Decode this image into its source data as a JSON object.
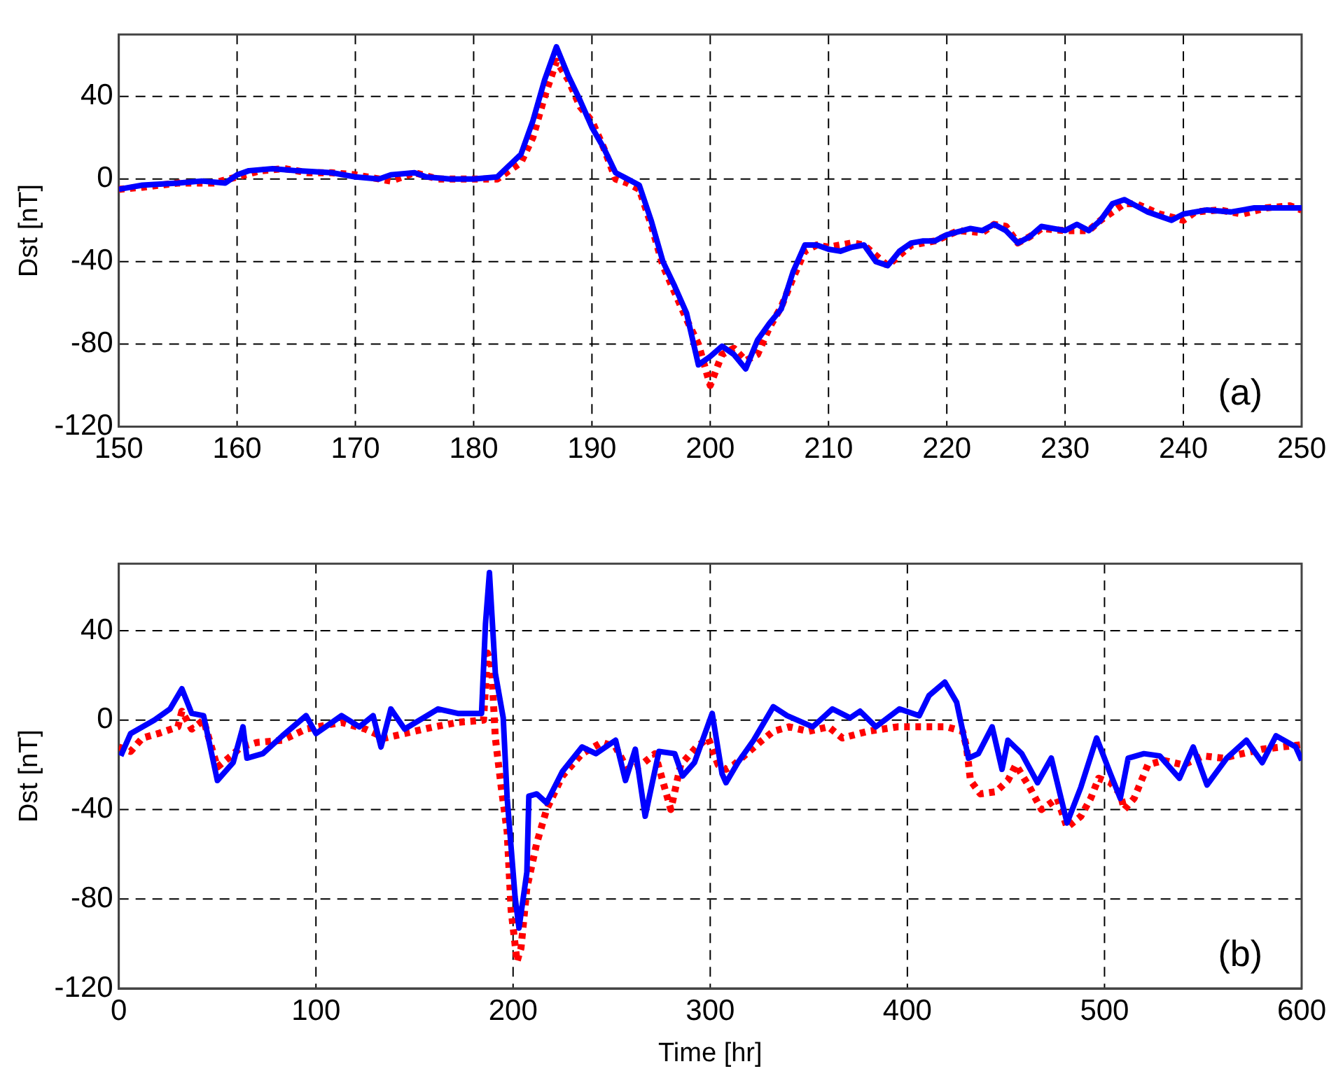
{
  "chart_data": [
    {
      "type": "line",
      "ylabel": "Dst [nT]",
      "xlim": [
        150,
        250
      ],
      "xticks": [
        150,
        160,
        170,
        180,
        190,
        200,
        210,
        220,
        230,
        240,
        250
      ],
      "ylim": [
        -120,
        70
      ],
      "yticks": [
        -120,
        -80,
        -40,
        0,
        40
      ],
      "grid": true,
      "marker": "none",
      "annotations": [
        "(a)"
      ],
      "series": [
        {
          "color": "#0000ff",
          "line_style": "solid",
          "x": [
            150,
            152,
            155,
            157,
            159,
            160,
            161,
            163,
            165,
            168,
            170,
            172,
            173,
            175,
            176,
            178,
            180,
            182,
            184,
            185,
            186,
            187,
            188,
            189,
            190,
            191,
            192,
            193,
            194,
            195,
            196,
            197,
            198,
            199,
            200,
            201,
            202,
            203,
            204,
            205,
            206,
            207,
            208,
            209,
            210,
            211,
            212,
            213,
            214,
            215,
            216,
            217,
            218,
            219,
            220,
            222,
            223,
            224,
            225,
            226,
            227,
            228,
            230,
            231,
            232,
            233,
            234,
            235,
            236,
            237,
            239,
            240,
            242,
            244,
            246,
            248,
            250
          ],
          "values": [
            -5,
            -3,
            -2,
            -1,
            -2,
            2,
            4,
            5,
            4,
            3,
            1,
            0,
            2,
            3,
            1,
            0,
            0,
            1,
            12,
            28,
            48,
            64,
            50,
            38,
            25,
            15,
            3,
            0,
            -3,
            -20,
            -40,
            -52,
            -65,
            -90,
            -86,
            -81,
            -85,
            -92,
            -78,
            -70,
            -63,
            -45,
            -32,
            -32,
            -34,
            -35,
            -33,
            -32,
            -40,
            -42,
            -35,
            -31,
            -30,
            -30,
            -27,
            -24,
            -25,
            -22,
            -25,
            -31,
            -28,
            -23,
            -25,
            -22,
            -25,
            -20,
            -12,
            -10,
            -13,
            -16,
            -20,
            -17,
            -15,
            -16,
            -14,
            -14,
            -14
          ]
        },
        {
          "color": "#ff0000",
          "line_style": "dotted",
          "x": [
            150,
            152,
            155,
            158,
            160,
            162,
            164,
            166,
            168,
            170,
            172,
            173,
            175,
            177,
            180,
            182,
            184,
            185,
            186,
            187,
            188,
            189,
            190,
            191,
            192,
            193,
            194,
            195,
            196,
            197,
            198,
            199,
            200,
            201,
            202,
            203,
            204,
            205,
            206,
            207,
            208,
            209,
            210,
            212,
            213,
            215,
            216,
            217,
            219,
            221,
            223,
            224,
            225,
            226,
            227,
            228,
            230,
            232,
            233,
            235,
            236,
            238,
            240,
            241,
            243,
            245,
            247,
            249,
            250
          ],
          "values": [
            -5,
            -4,
            -2,
            -2,
            1,
            4,
            5,
            3,
            3,
            2,
            0,
            -1,
            3,
            0,
            0,
            0,
            8,
            20,
            40,
            57,
            48,
            35,
            28,
            15,
            0,
            -2,
            -5,
            -22,
            -42,
            -55,
            -68,
            -80,
            -100,
            -85,
            -82,
            -88,
            -85,
            -72,
            -62,
            -48,
            -35,
            -32,
            -33,
            -31,
            -32,
            -42,
            -37,
            -32,
            -30,
            -25,
            -26,
            -22,
            -23,
            -31,
            -28,
            -24,
            -25,
            -25,
            -20,
            -12,
            -12,
            -17,
            -20,
            -16,
            -15,
            -17,
            -14,
            -13,
            -15
          ]
        }
      ]
    },
    {
      "type": "line",
      "xlabel": "Time [hr]",
      "ylabel": "Dst [nT]",
      "xlim": [
        0,
        600
      ],
      "xticks": [
        0,
        100,
        200,
        300,
        400,
        500,
        600
      ],
      "ylim": [
        -120,
        70
      ],
      "yticks": [
        -120,
        -80,
        -40,
        0,
        40
      ],
      "grid": true,
      "marker": "none",
      "annotations": [
        "(b)"
      ],
      "series": [
        {
          "color": "#0000ff",
          "line_style": "solid",
          "x": [
            1,
            6,
            18,
            26,
            32,
            37,
            43,
            50,
            58,
            63,
            65,
            73,
            83,
            95,
            100,
            113,
            122,
            129,
            133,
            138,
            145,
            162,
            172,
            184,
            186,
            188,
            191,
            195,
            197,
            201,
            203,
            207,
            208,
            212,
            217,
            225,
            235,
            242,
            252,
            257,
            262,
            267,
            274,
            282,
            286,
            292,
            301,
            306,
            308,
            314,
            322,
            332,
            339,
            352,
            362,
            371,
            376,
            384,
            396,
            406,
            411,
            419,
            425,
            431,
            436,
            443,
            448,
            451,
            458,
            466,
            473,
            481,
            488,
            496,
            503,
            508,
            512,
            520,
            528,
            538,
            545,
            552,
            562,
            572,
            580,
            587,
            597,
            600
          ],
          "values": [
            -16,
            -6,
            0,
            5,
            14,
            3,
            2,
            -27,
            -19,
            -3,
            -17,
            -15,
            -7,
            2,
            -6,
            2,
            -3,
            2,
            -12,
            5,
            -4,
            5,
            3,
            3,
            43,
            66,
            21,
            1,
            -35,
            -79,
            -93,
            -68,
            -34,
            -33,
            -37,
            -23,
            -12,
            -15,
            -9,
            -27,
            -13,
            -43,
            -14,
            -15,
            -25,
            -19,
            3,
            -24,
            -28,
            -19,
            -9,
            6,
            2,
            -3,
            5,
            1,
            4,
            -3,
            5,
            2,
            11,
            17,
            8,
            -17,
            -15,
            -3,
            -22,
            -9,
            -15,
            -28,
            -17,
            -46,
            -30,
            -8,
            -24,
            -35,
            -17,
            -15,
            -16,
            -26,
            -12,
            -29,
            -17,
            -9,
            -19,
            -7,
            -12,
            -18
          ]
        },
        {
          "color": "#ff0000",
          "line_style": "dotted",
          "x": [
            0,
            6,
            12,
            20,
            30,
            32,
            37,
            43,
            47,
            50,
            57,
            62,
            70,
            83,
            95,
            113,
            125,
            135,
            145,
            160,
            172,
            185,
            187,
            189,
            191,
            194,
            197,
            199,
            202,
            204,
            207,
            212,
            217,
            225,
            235,
            245,
            252,
            258,
            265,
            272,
            280,
            285,
            293,
            299,
            304,
            308,
            312,
            325,
            332,
            340,
            350,
            360,
            367,
            380,
            395,
            405,
            420,
            428,
            430,
            432,
            437,
            445,
            451,
            455,
            462,
            468,
            476,
            481,
            488,
            493,
            497,
            503,
            508,
            510,
            515,
            522,
            530,
            540,
            550,
            560,
            570,
            580,
            590,
            600
          ],
          "values": [
            -12,
            -14,
            -8,
            -6,
            -3,
            4,
            -4,
            0,
            -12,
            -21,
            -16,
            -12,
            -10,
            -9,
            -4,
            -1,
            -4,
            -8,
            -6,
            -3,
            -1,
            0,
            30,
            25,
            -8,
            -30,
            -50,
            -85,
            -108,
            -102,
            -75,
            -55,
            -40,
            -25,
            -15,
            -10,
            -12,
            -22,
            -20,
            -15,
            -40,
            -20,
            -12,
            -8,
            -20,
            -22,
            -20,
            -10,
            -5,
            -3,
            -5,
            -3,
            -8,
            -5,
            -3,
            -3,
            -3,
            -5,
            -12,
            -27,
            -33,
            -32,
            -27,
            -20,
            -30,
            -40,
            -35,
            -48,
            -43,
            -35,
            -26,
            -28,
            -33,
            -40,
            -35,
            -20,
            -18,
            -20,
            -16,
            -17,
            -15,
            -13,
            -12,
            -11
          ]
        }
      ]
    }
  ]
}
